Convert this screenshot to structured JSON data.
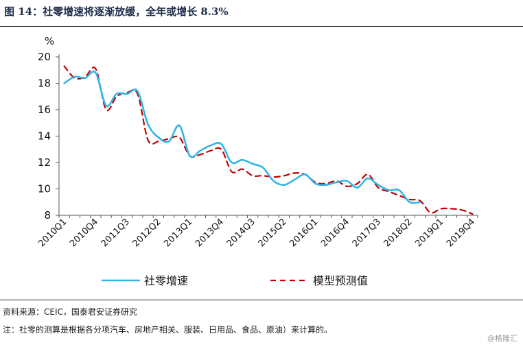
{
  "figure": {
    "title": "图 14：社零增速将逐渐放缓，全年或增长 8.3%",
    "source": "资料来源：CEIC，国泰君安证券研究",
    "footnote": "注：社零的测算是根据各分项汽车、房地产相关、服装、日用品、食品、原油）来计算的。",
    "watermark": "@格隆汇"
  },
  "chart_data": {
    "type": "line",
    "ylabel": "%",
    "ylim": [
      8,
      20
    ],
    "yticks": [
      8,
      10,
      12,
      14,
      16,
      18,
      20
    ],
    "categories": [
      "2010Q1",
      "2010Q2",
      "2010Q3",
      "2010Q4",
      "2011Q1",
      "2011Q2",
      "2011Q3",
      "2011Q4",
      "2012Q1",
      "2012Q2",
      "2012Q3",
      "2012Q4",
      "2013Q1",
      "2013Q2",
      "2013Q3",
      "2013Q4",
      "2014Q1",
      "2014Q2",
      "2014Q3",
      "2014Q4",
      "2015Q1",
      "2015Q2",
      "2015Q3",
      "2015Q4",
      "2016Q1",
      "2016Q2",
      "2016Q3",
      "2016Q4",
      "2017Q1",
      "2017Q2",
      "2017Q3",
      "2017Q4",
      "2018Q1",
      "2018Q2",
      "2018Q3",
      "2018Q4",
      "2019Q1",
      "2019Q2",
      "2019Q3",
      "2019Q4"
    ],
    "xtick_labels": [
      "2010Q1",
      "2010Q4",
      "2011Q3",
      "2012Q2",
      "2013Q1",
      "2013Q4",
      "2014Q3",
      "2015Q2",
      "2016Q1",
      "2016Q4",
      "2017Q3",
      "2018Q2",
      "2019Q1",
      "2019Q4"
    ],
    "series": [
      {
        "name": "社零增速",
        "color": "#33b5e5",
        "style": "solid",
        "values": [
          18.0,
          18.5,
          18.4,
          18.8,
          16.3,
          17.2,
          17.2,
          17.4,
          14.9,
          13.9,
          13.6,
          14.8,
          12.5,
          12.9,
          13.3,
          13.4,
          12.0,
          12.2,
          11.9,
          11.6,
          10.6,
          10.3,
          10.7,
          11.1,
          10.4,
          10.3,
          10.5,
          10.6,
          10.1,
          10.8,
          10.3,
          9.9,
          9.9,
          9.0,
          9.0,
          null,
          null,
          null,
          null,
          null
        ]
      },
      {
        "name": "模型预测值",
        "color": "#c00000",
        "style": "dashed",
        "values": [
          19.3,
          18.4,
          18.5,
          19.1,
          16.0,
          17.0,
          17.3,
          17.2,
          13.7,
          13.6,
          13.8,
          13.9,
          12.5,
          12.6,
          12.9,
          13.0,
          11.3,
          11.5,
          11.0,
          11.0,
          10.9,
          11.0,
          11.2,
          11.1,
          10.5,
          10.4,
          10.6,
          10.2,
          10.4,
          11.1,
          10.1,
          9.8,
          9.5,
          9.2,
          9.1,
          8.2,
          8.5,
          8.5,
          8.4,
          8.1
        ]
      }
    ],
    "legend": {
      "position": "bottom"
    },
    "grid": false
  }
}
